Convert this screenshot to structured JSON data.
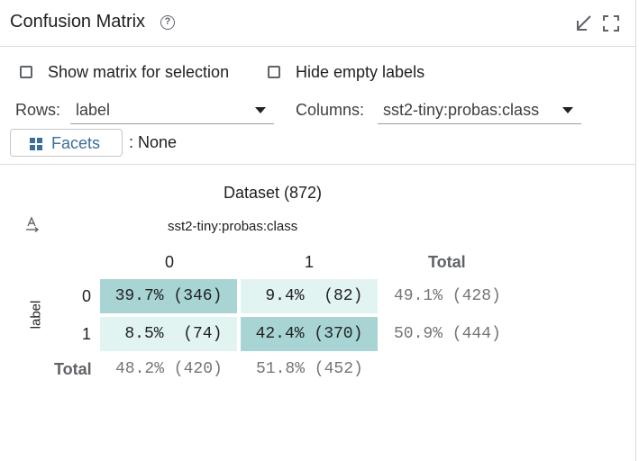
{
  "header": {
    "title": "Confusion Matrix",
    "help_icon": "help-circle-icon",
    "icons": [
      "collapse-arrow-icon",
      "fullscreen-icon"
    ]
  },
  "options": {
    "show_matrix_label": "Show matrix for selection",
    "show_matrix_checked": false,
    "hide_empty_label": "Hide empty labels",
    "hide_empty_checked": false
  },
  "rows_select": {
    "label": "Rows:",
    "value": "label"
  },
  "columns_select": {
    "label": "Columns:",
    "value": "sst2-tiny:probas:class"
  },
  "facets": {
    "button_label": "Facets",
    "value_text": ": None",
    "icon": "grid-icon"
  },
  "matrix": {
    "dataset_title": "Dataset (872)",
    "column_axis_label": "sst2-tiny:probas:class",
    "row_axis_label": "label",
    "column_headers": [
      "0",
      "1"
    ],
    "total_label": "Total",
    "row_headers": [
      "0",
      "1"
    ],
    "cells": [
      [
        "39.7% (346)",
        " 9.4%  (82)"
      ],
      [
        " 8.5%  (74)",
        "42.4% (370)"
      ]
    ],
    "row_totals": [
      "49.1% (428)",
      "50.9% (444)"
    ],
    "column_totals": [
      "48.2% (420)",
      "51.8% (452)"
    ],
    "colors": {
      "high": "#a8d5d3",
      "low": "#e2f4f1"
    }
  }
}
